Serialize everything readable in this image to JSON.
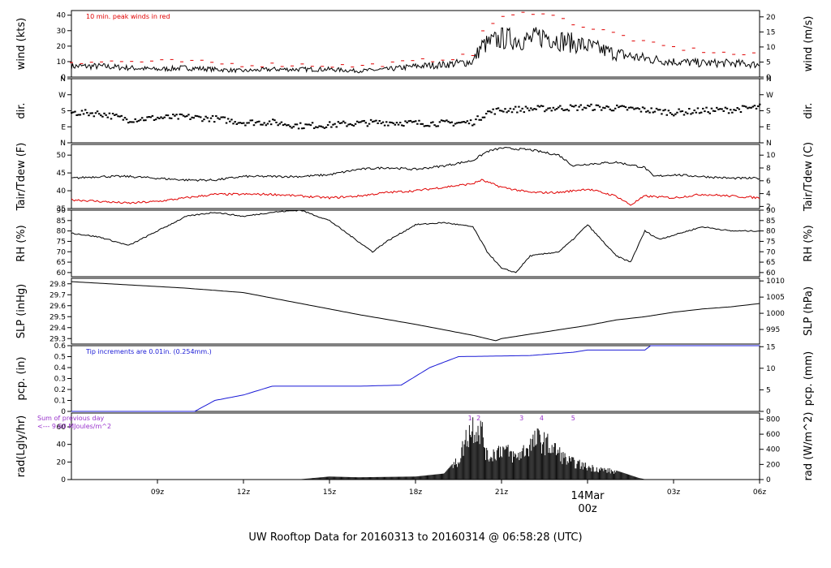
{
  "title": "UW Rooftop Data for 20160313  to  20160314 @ 06:58:28  (UTC)",
  "colors": {
    "title": "#1a1ad6",
    "red": "#e00000",
    "blue": "#1a1ad6",
    "purple": "#9933cc",
    "axis": "#000000"
  },
  "x_axis": {
    "range_hours": [
      6,
      30
    ],
    "ticks": [
      {
        "h": 9,
        "label": "09z"
      },
      {
        "h": 12,
        "label": "12z"
      },
      {
        "h": 15,
        "label": "15z"
      },
      {
        "h": 18,
        "label": "18z"
      },
      {
        "h": 21,
        "label": "21z"
      },
      {
        "h": 27,
        "label": "03z"
      },
      {
        "h": 30,
        "label": "06z"
      }
    ],
    "day_marker": {
      "h": 24,
      "date": "14Mar",
      "time": "00z"
    }
  },
  "chart_data": [
    {
      "type": "line",
      "id": "wind",
      "ylabel": "wind (kts)",
      "ylabel_right": "wind (m/s)",
      "ylim": [
        0,
        43
      ],
      "yticks": [
        0,
        10,
        20,
        30,
        40
      ],
      "right_ylim": [
        0,
        22.1
      ],
      "right_yticks": [
        0,
        5,
        10,
        15,
        20
      ],
      "annotation": "10 min. peak winds in red",
      "series": [
        {
          "values": [
            [
              6,
              7
            ],
            [
              7,
              7
            ],
            [
              8,
              6
            ],
            [
              9,
              5
            ],
            [
              10,
              6
            ],
            [
              11,
              5
            ],
            [
              12,
              4
            ],
            [
              13,
              5
            ],
            [
              14,
              5
            ],
            [
              15,
              5
            ],
            [
              16,
              4
            ],
            [
              17,
              5
            ],
            [
              18,
              7
            ],
            [
              19,
              8
            ],
            [
              20,
              10
            ],
            [
              20.3,
              20
            ],
            [
              21,
              25
            ],
            [
              22,
              24
            ],
            [
              22.5,
              27
            ],
            [
              23,
              24
            ],
            [
              24,
              20
            ],
            [
              25,
              15
            ],
            [
              26,
              12
            ],
            [
              27,
              10
            ],
            [
              28,
              9
            ],
            [
              29,
              9
            ],
            [
              30,
              8
            ]
          ]
        },
        {
          "values": [
            [
              6,
              10
            ],
            [
              8,
              10
            ],
            [
              10,
              10
            ],
            [
              12,
              8
            ],
            [
              14,
              8
            ],
            [
              16,
              7
            ],
            [
              18,
              10
            ],
            [
              19,
              12
            ],
            [
              20,
              14
            ],
            [
              20.3,
              30
            ],
            [
              21,
              38
            ],
            [
              22,
              42
            ],
            [
              22.5,
              42
            ],
            [
              23,
              38
            ],
            [
              24,
              32
            ],
            [
              25,
              28
            ],
            [
              26,
              22
            ],
            [
              27,
              19
            ],
            [
              28,
              17
            ],
            [
              29,
              15
            ],
            [
              30,
              14
            ]
          ]
        }
      ]
    },
    {
      "type": "scatter",
      "id": "dir",
      "ylabel": "dir.",
      "ylabel_right": "dir.",
      "ylim": [
        0,
        360
      ],
      "ytick_labels": [
        {
          "v": 0,
          "label": "N"
        },
        {
          "v": 90,
          "label": "E"
        },
        {
          "v": 180,
          "label": "S"
        },
        {
          "v": 270,
          "label": "W"
        },
        {
          "v": 360,
          "label": "N"
        }
      ],
      "values": [
        [
          6,
          170
        ],
        [
          7,
          165
        ],
        [
          8,
          130
        ],
        [
          9,
          140
        ],
        [
          10,
          145
        ],
        [
          11,
          135
        ],
        [
          12,
          115
        ],
        [
          13,
          115
        ],
        [
          14,
          95
        ],
        [
          15,
          100
        ],
        [
          16,
          110
        ],
        [
          17,
          115
        ],
        [
          18,
          110
        ],
        [
          19,
          110
        ],
        [
          20,
          115
        ],
        [
          20.5,
          170
        ],
        [
          21,
          185
        ],
        [
          22,
          190
        ],
        [
          23,
          195
        ],
        [
          24,
          200
        ],
        [
          25,
          195
        ],
        [
          26,
          185
        ],
        [
          27,
          170
        ],
        [
          28,
          180
        ],
        [
          29,
          185
        ],
        [
          30,
          200
        ]
      ]
    },
    {
      "type": "line",
      "id": "temp",
      "ylabel": "Tair/Tdew (F)",
      "ylabel_right": "Tair/Tdew (C)",
      "ylim": [
        35,
        53
      ],
      "yticks": [
        35,
        40,
        45,
        50
      ],
      "right_ylim": [
        1.67,
        11.67
      ],
      "right_yticks": [
        2,
        4,
        6,
        8,
        10
      ],
      "series": [
        {
          "values": [
            [
              6,
              43.5
            ],
            [
              7,
              44
            ],
            [
              8,
              44
            ],
            [
              9,
              43.5
            ],
            [
              10,
              43
            ],
            [
              11,
              43
            ],
            [
              12,
              44
            ],
            [
              13,
              44
            ],
            [
              14,
              44
            ],
            [
              15,
              44.5
            ],
            [
              16,
              46
            ],
            [
              17,
              46.5
            ],
            [
              18,
              46
            ],
            [
              19,
              47
            ],
            [
              20,
              48.5
            ],
            [
              20.5,
              51
            ],
            [
              21,
              52
            ],
            [
              22,
              51.5
            ],
            [
              23,
              50
            ],
            [
              23.5,
              47
            ],
            [
              24,
              47.5
            ],
            [
              25,
              48
            ],
            [
              26,
              46.5
            ],
            [
              26.3,
              44
            ],
            [
              27,
              44.5
            ],
            [
              28,
              44
            ],
            [
              29,
              43.5
            ],
            [
              30,
              43.5
            ]
          ]
        },
        {
          "values": [
            [
              6,
              37.5
            ],
            [
              7,
              37
            ],
            [
              8,
              36.5
            ],
            [
              9,
              37
            ],
            [
              10,
              38
            ],
            [
              11,
              39
            ],
            [
              12,
              39
            ],
            [
              13,
              39
            ],
            [
              14,
              38.5
            ],
            [
              15,
              38
            ],
            [
              16,
              38.5
            ],
            [
              17,
              39.5
            ],
            [
              18,
              40
            ],
            [
              19,
              41
            ],
            [
              20,
              42
            ],
            [
              20.3,
              43
            ],
            [
              21,
              41
            ],
            [
              22,
              39.5
            ],
            [
              23,
              39.5
            ],
            [
              24,
              40.5
            ],
            [
              25,
              38.5
            ],
            [
              25.5,
              36
            ],
            [
              26,
              38.5
            ],
            [
              27,
              38
            ],
            [
              28,
              39
            ],
            [
              29,
              38.5
            ],
            [
              30,
              38
            ]
          ]
        }
      ]
    },
    {
      "type": "line",
      "id": "rh",
      "ylabel": "RH (%)",
      "ylabel_right": "RH (%)",
      "ylim": [
        58,
        90
      ],
      "yticks": [
        60,
        65,
        70,
        75,
        80,
        85,
        90
      ],
      "values": [
        [
          6,
          79
        ],
        [
          7,
          77
        ],
        [
          8,
          73
        ],
        [
          9,
          80
        ],
        [
          10,
          87
        ],
        [
          11,
          89
        ],
        [
          12,
          87
        ],
        [
          13,
          89
        ],
        [
          14,
          90
        ],
        [
          15,
          85
        ],
        [
          16,
          75
        ],
        [
          16.5,
          70
        ],
        [
          17,
          75
        ],
        [
          18,
          83
        ],
        [
          19,
          84
        ],
        [
          20,
          82
        ],
        [
          20.5,
          70
        ],
        [
          21,
          62
        ],
        [
          21.5,
          60
        ],
        [
          22,
          68
        ],
        [
          23,
          70
        ],
        [
          23.5,
          76
        ],
        [
          24,
          83
        ],
        [
          25,
          68
        ],
        [
          25.5,
          65
        ],
        [
          26,
          80
        ],
        [
          26.5,
          76
        ],
        [
          27,
          78
        ],
        [
          28,
          82
        ],
        [
          29,
          80
        ],
        [
          30,
          80
        ]
      ]
    },
    {
      "type": "line",
      "id": "slp",
      "ylabel": "SLP (inHg)",
      "ylabel_right": "SLP (hPa)",
      "ylim": [
        29.25,
        29.85
      ],
      "yticks": [
        29.3,
        29.4,
        29.5,
        29.6,
        29.7,
        29.8
      ],
      "right_ylim": [
        990.5,
        1010.8
      ],
      "right_yticks": [
        995,
        1000,
        1005,
        1010
      ],
      "values": [
        [
          6,
          29.82
        ],
        [
          8,
          29.79
        ],
        [
          10,
          29.76
        ],
        [
          12,
          29.72
        ],
        [
          14,
          29.62
        ],
        [
          16,
          29.52
        ],
        [
          18,
          29.43
        ],
        [
          19,
          29.38
        ],
        [
          20,
          29.33
        ],
        [
          20.8,
          29.28
        ],
        [
          21,
          29.3
        ],
        [
          22,
          29.34
        ],
        [
          23,
          29.38
        ],
        [
          24,
          29.42
        ],
        [
          25,
          29.47
        ],
        [
          26,
          29.5
        ],
        [
          27,
          29.54
        ],
        [
          28,
          29.57
        ],
        [
          29,
          29.59
        ],
        [
          30,
          29.62
        ]
      ]
    },
    {
      "type": "line",
      "id": "pcp",
      "ylabel": "pcp. (in)",
      "ylabel_right": "pcp. (mm)",
      "ylim": [
        0,
        0.6
      ],
      "yticks": [
        0,
        0.1,
        0.2,
        0.3,
        0.4,
        0.5,
        0.6
      ],
      "right_ylim": [
        0,
        15.24
      ],
      "right_yticks": [
        0,
        5,
        10,
        15
      ],
      "annotation": "Tip increments are 0.01in. (0.254mm.)",
      "values": [
        [
          6,
          0
        ],
        [
          10.3,
          0
        ],
        [
          11,
          0.1
        ],
        [
          12,
          0.15
        ],
        [
          13,
          0.23
        ],
        [
          16,
          0.23
        ],
        [
          17.5,
          0.24
        ],
        [
          18.5,
          0.4
        ],
        [
          19.5,
          0.5
        ],
        [
          22,
          0.51
        ],
        [
          23.5,
          0.54
        ],
        [
          24,
          0.56
        ],
        [
          26,
          0.56
        ],
        [
          26.2,
          0.6
        ],
        [
          30,
          0.6
        ]
      ]
    },
    {
      "type": "bar",
      "id": "rad",
      "ylabel": "rad(Lgly/hr)",
      "ylabel_right": "rad (W/m^2)",
      "ylim": [
        0,
        880
      ],
      "right_yticks": [
        0,
        200,
        400,
        600,
        800
      ],
      "left_yticks": [
        {
          "v": 0,
          "label": "0"
        },
        {
          "v": 232,
          "label": "20"
        },
        {
          "v": 465,
          "label": "40"
        },
        {
          "v": 697,
          "label": "60"
        }
      ],
      "annotation": "Sum of previous day",
      "annotation2": "<--- 9.60 MJoules/m^2",
      "peak_labels": [
        {
          "h": 19.9,
          "label": "1"
        },
        {
          "h": 20.2,
          "label": "2"
        },
        {
          "h": 21.7,
          "label": "3"
        },
        {
          "h": 22.4,
          "label": "4"
        },
        {
          "h": 23.5,
          "label": "5"
        }
      ],
      "values": [
        [
          14,
          5
        ],
        [
          15,
          40
        ],
        [
          16,
          30
        ],
        [
          17,
          35
        ],
        [
          18,
          40
        ],
        [
          19,
          80
        ],
        [
          19.5,
          300
        ],
        [
          19.8,
          700
        ],
        [
          20,
          850
        ],
        [
          20.3,
          800
        ],
        [
          20.5,
          350
        ],
        [
          21,
          500
        ],
        [
          21.5,
          350
        ],
        [
          22,
          550
        ],
        [
          22.3,
          650
        ],
        [
          22.8,
          500
        ],
        [
          23.3,
          300
        ],
        [
          24,
          200
        ],
        [
          25,
          120
        ],
        [
          25.8,
          20
        ],
        [
          26,
          5
        ]
      ]
    }
  ]
}
